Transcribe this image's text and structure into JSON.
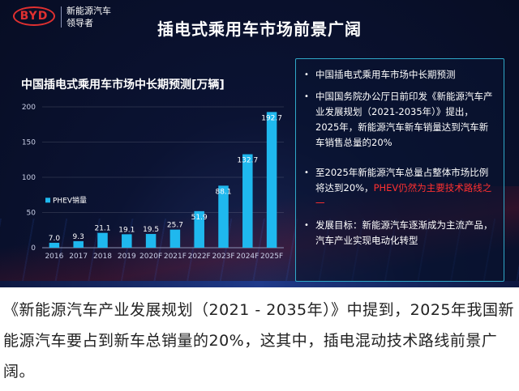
{
  "brand": {
    "logo_text": "BYD",
    "slogan_line1": "新能源汽车",
    "slogan_line2": "领导者"
  },
  "slide_title": "插电式乘用车市场前景广阔",
  "chart_data": {
    "type": "bar",
    "title": "中国插电式乘用车市场中长期预测[万辆]",
    "categories": [
      "2016",
      "2017",
      "2018",
      "2019",
      "2020F",
      "2021F",
      "2022F",
      "2023F",
      "2024F",
      "2025F"
    ],
    "series": [
      {
        "name": "PHEV销量",
        "values": [
          7.0,
          9.3,
          21.1,
          19.1,
          19.5,
          25.7,
          51.9,
          88.1,
          132.7,
          192.7
        ]
      }
    ],
    "value_labels": [
      "7.0",
      "9.3",
      "21.1",
      "19.1",
      "19.5",
      "25.7",
      "51.9",
      "88.1",
      "132.7",
      "192.7"
    ],
    "y_ticks": [
      "0",
      "50",
      "100",
      "150",
      "200"
    ],
    "ylim": [
      0,
      200
    ],
    "bar_color": "#1fb8ee",
    "legend_position": "left"
  },
  "info": {
    "item1": "中国插电式乘用车市场中长期预测",
    "item2": "中国国务院办公厅日前印发《新能源汽车产业发展规划（2021-2035年）》提出，2025年，新能源汽车新车销量达到汽车新车销售总量的20%",
    "item3_before": "至2025年新能源汽车总量占整体市场比例将达到20%，",
    "item3_highlight": "PHEV仍然为主要技术路线之一",
    "item4": "发展目标：新能源汽车逐渐成为主流产品，汽车产业实现电动化转型",
    "bullet": "•"
  },
  "caption": "《新能源汽车产业发展规划（2021 - 2035年）》中提到，2025年我国新能源汽车要占到新车总销量的20%，这其中，插电混动技术路线前景广阔。"
}
